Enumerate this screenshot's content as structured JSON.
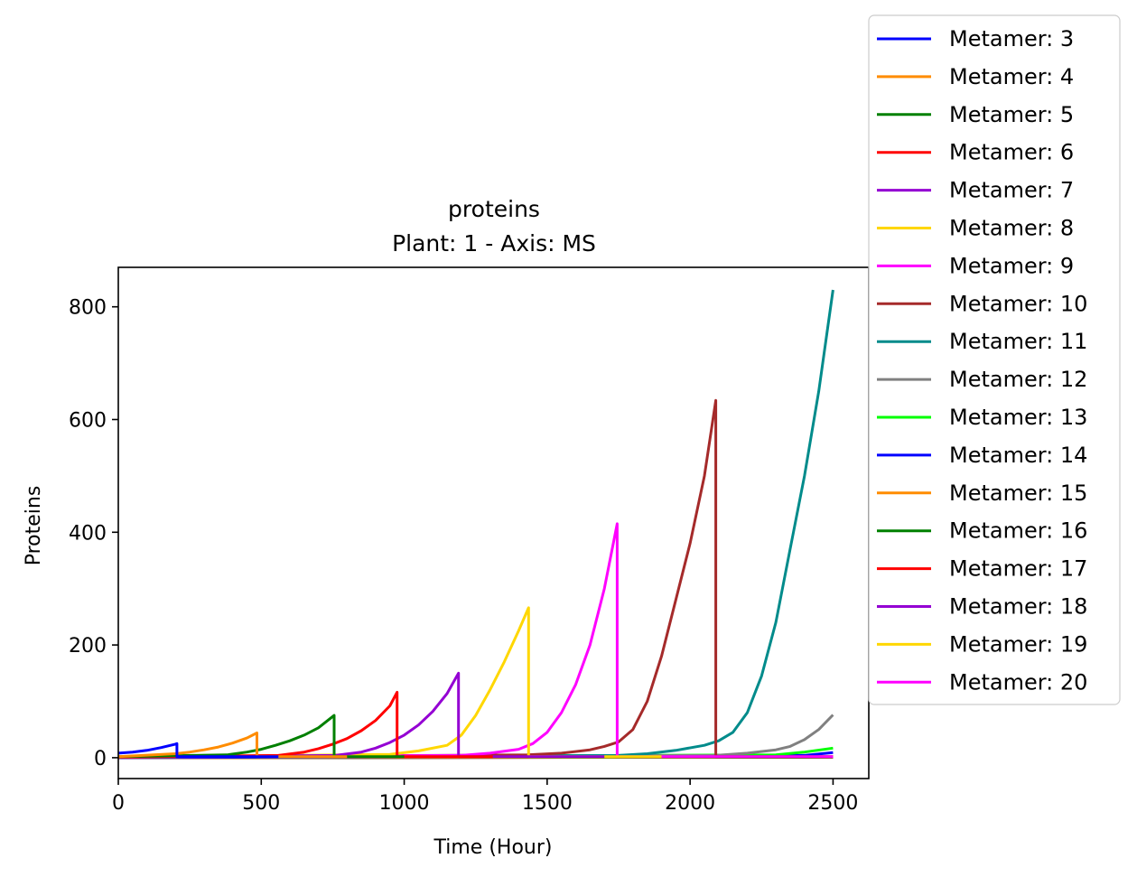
{
  "chart_data": {
    "type": "line",
    "title": "proteins",
    "subtitle": "Plant: 1 - Axis: MS",
    "xlabel": "Time (Hour)",
    "ylabel": "Proteins",
    "xlim": [
      0,
      2625
    ],
    "ylim": [
      -37,
      870
    ],
    "xticks": [
      0,
      500,
      1000,
      1500,
      2000,
      2500
    ],
    "yticks": [
      0,
      200,
      400,
      600,
      800
    ],
    "grid": false,
    "legend_position": "upper-right-outside",
    "series": [
      {
        "name": "Metamer: 3",
        "color": "#0000ff",
        "x": [
          0,
          50,
          100,
          150,
          200,
          205,
          205,
          560
        ],
        "y": [
          8,
          10,
          13,
          18,
          24,
          25,
          2,
          2
        ]
      },
      {
        "name": "Metamer: 4",
        "color": "#ff8c00",
        "x": [
          0,
          200,
          250,
          300,
          350,
          400,
          450,
          485,
          485,
          800
        ],
        "y": [
          2,
          7,
          10,
          14,
          19,
          26,
          35,
          44,
          2,
          2
        ]
      },
      {
        "name": "Metamer: 5",
        "color": "#008000",
        "x": [
          0,
          380,
          450,
          500,
          550,
          600,
          650,
          700,
          755,
          755,
          1000
        ],
        "y": [
          2,
          5,
          10,
          15,
          22,
          30,
          40,
          53,
          75,
          2,
          2
        ]
      },
      {
        "name": "Metamer: 6",
        "color": "#ff0000",
        "x": [
          0,
          560,
          650,
          700,
          750,
          800,
          850,
          900,
          950,
          975,
          975,
          1310
        ],
        "y": [
          1,
          4,
          10,
          16,
          24,
          34,
          48,
          66,
          92,
          116,
          2,
          2
        ]
      },
      {
        "name": "Metamer: 7",
        "color": "#9400d3",
        "x": [
          0,
          760,
          850,
          900,
          950,
          1000,
          1050,
          1100,
          1150,
          1190,
          1190,
          1700
        ],
        "y": [
          1,
          4,
          10,
          17,
          27,
          40,
          58,
          82,
          114,
          150,
          2,
          2
        ]
      },
      {
        "name": "Metamer: 8",
        "color": "#ffd700",
        "x": [
          0,
          950,
          1050,
          1150,
          1200,
          1250,
          1300,
          1350,
          1400,
          1435,
          1435,
          1900
        ],
        "y": [
          1,
          6,
          12,
          22,
          40,
          75,
          120,
          170,
          225,
          266,
          2,
          2
        ]
      },
      {
        "name": "Metamer: 9",
        "color": "#ff00ff",
        "x": [
          0,
          1200,
          1300,
          1400,
          1450,
          1500,
          1550,
          1600,
          1650,
          1700,
          1745,
          1745,
          2500
        ],
        "y": [
          1,
          4,
          8,
          15,
          25,
          45,
          80,
          130,
          200,
          300,
          415,
          2,
          2
        ]
      },
      {
        "name": "Metamer: 10",
        "color": "#a52a2a",
        "x": [
          0,
          1430,
          1550,
          1650,
          1700,
          1750,
          1800,
          1850,
          1900,
          1950,
          2000,
          2050,
          2090,
          2090,
          2500
        ],
        "y": [
          1,
          5,
          8,
          14,
          20,
          28,
          50,
          100,
          180,
          280,
          380,
          500,
          634,
          2,
          2
        ]
      },
      {
        "name": "Metamer: 11",
        "color": "#008b8b",
        "x": [
          0,
          1750,
          1850,
          1950,
          2050,
          2100,
          2150,
          2200,
          2250,
          2300,
          2350,
          2400,
          2450,
          2500
        ],
        "y": [
          1,
          4,
          7,
          13,
          22,
          30,
          45,
          80,
          145,
          240,
          370,
          500,
          650,
          830
        ]
      },
      {
        "name": "Metamer: 12",
        "color": "#808080",
        "x": [
          0,
          2090,
          2200,
          2300,
          2350,
          2400,
          2450,
          2500
        ],
        "y": [
          1,
          4,
          8,
          14,
          20,
          32,
          50,
          76
        ]
      },
      {
        "name": "Metamer: 13",
        "color": "#00ff00",
        "x": [
          0,
          2300,
          2400,
          2500
        ],
        "y": [
          1,
          5,
          10,
          17
        ]
      },
      {
        "name": "Metamer: 14",
        "color": "#0000ff",
        "x": [
          0,
          2400,
          2500
        ],
        "y": [
          0,
          4,
          9
        ]
      },
      {
        "name": "Metamer: 15",
        "color": "#ff8c00",
        "x": [
          0,
          2500
        ],
        "y": [
          0,
          2
        ]
      },
      {
        "name": "Metamer: 16",
        "color": "#008000",
        "x": [
          0,
          2500
        ],
        "y": [
          0,
          1
        ]
      },
      {
        "name": "Metamer: 17",
        "color": "#ff0000",
        "x": [
          0,
          2500
        ],
        "y": [
          0,
          1
        ]
      },
      {
        "name": "Metamer: 18",
        "color": "#9400d3",
        "x": [
          0,
          2500
        ],
        "y": [
          0,
          1
        ]
      },
      {
        "name": "Metamer: 19",
        "color": "#ffd700",
        "x": [
          0,
          2500
        ],
        "y": [
          0,
          1
        ]
      },
      {
        "name": "Metamer: 20",
        "color": "#ff00ff",
        "x": [
          0,
          2500
        ],
        "y": [
          0,
          1
        ]
      }
    ]
  }
}
